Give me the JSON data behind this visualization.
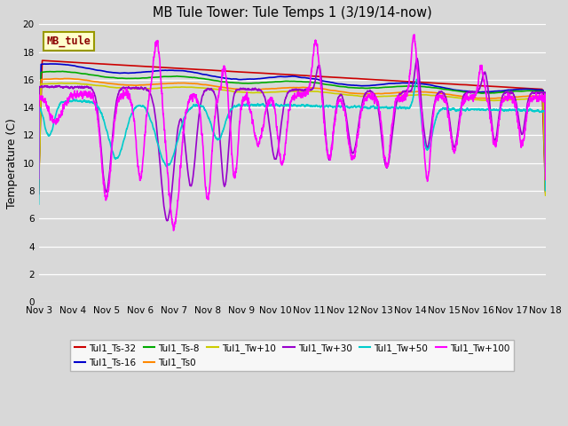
{
  "title": "MB Tule Tower: Tule Temps 1 (3/19/14-now)",
  "ylabel": "Temperature (C)",
  "background_color": "#d8d8d8",
  "ylim": [
    0,
    20
  ],
  "yticks": [
    0,
    2,
    4,
    6,
    8,
    10,
    12,
    14,
    16,
    18,
    20
  ],
  "x_labels": [
    "Nov 3",
    "Nov 4",
    "Nov 5",
    "Nov 6",
    "Nov 7",
    "Nov 8",
    "Nov 9",
    "Nov 10",
    "Nov 11",
    "Nov 12",
    "Nov 13",
    "Nov 14",
    "Nov 15",
    "Nov 16",
    "Nov 17",
    "Nov 18"
  ],
  "series_order": [
    "Tul1_Ts-32",
    "Tul1_Ts-16",
    "Tul1_Ts-8",
    "Tul1_Ts0",
    "Tul1_Tw+10",
    "Tul1_Tw+30",
    "Tul1_Tw+50",
    "Tul1_Tw+100"
  ],
  "series": {
    "Tul1_Ts-32": {
      "color": "#cc0000",
      "lw": 1.2
    },
    "Tul1_Ts-16": {
      "color": "#0000cc",
      "lw": 1.2
    },
    "Tul1_Ts-8": {
      "color": "#00aa00",
      "lw": 1.2
    },
    "Tul1_Ts0": {
      "color": "#ff8800",
      "lw": 1.2
    },
    "Tul1_Tw+10": {
      "color": "#cccc00",
      "lw": 1.2
    },
    "Tul1_Tw+30": {
      "color": "#9900cc",
      "lw": 1.2
    },
    "Tul1_Tw+50": {
      "color": "#00cccc",
      "lw": 1.2
    },
    "Tul1_Tw+100": {
      "color": "#ff00ff",
      "lw": 1.2
    }
  },
  "legend_label": "MB_tule",
  "legend_bg": "#ffffcc",
  "legend_edge": "#999900"
}
